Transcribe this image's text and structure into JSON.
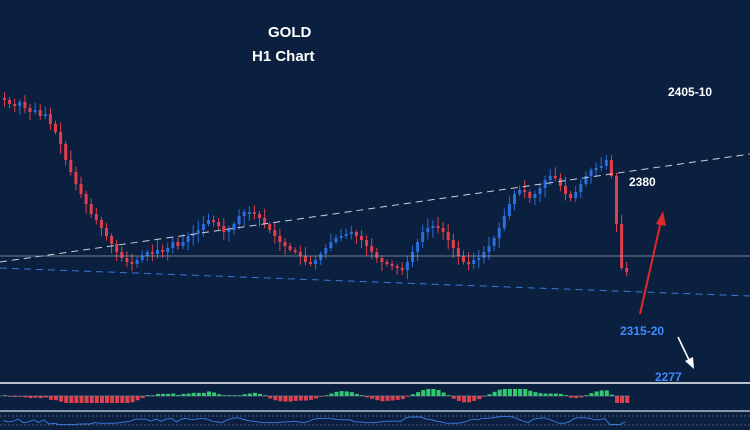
{
  "colors": {
    "background": "#0b1f3f",
    "bullish": "#2a6fdb",
    "bearish": "#e0404d",
    "trendline": "#c8d2e0",
    "support_line": "#3a78d6",
    "up_arrow": "#e02a2a",
    "down_arrow": "#ffffff",
    "label_blue": "#3d8bff",
    "label_white": "#ffffff",
    "histogram_positive": "#2ecc71",
    "histogram_negative": "#e0404d",
    "oscillator": "#3a78d6"
  },
  "chart_data": {
    "type": "candlestick",
    "title": "GOLD",
    "subtitle": "H1 Chart",
    "y_unit": "price",
    "annotations": [
      {
        "text": "2405-10",
        "kind": "target",
        "price": 2407
      },
      {
        "text": "2380",
        "kind": "resistance",
        "price": 2380
      },
      {
        "text": "2315-20",
        "kind": "support",
        "price": 2317
      },
      {
        "text": "2277",
        "kind": "target",
        "price": 2277
      }
    ],
    "trendlines": [
      {
        "name": "upper-dashed",
        "from_price": 2331,
        "to_price": 2385
      },
      {
        "name": "lower-dashed",
        "from_price": 2328,
        "to_price": 2314
      }
    ],
    "horizontal_line_price": 2334,
    "close_series": [
      2412,
      2410,
      2409,
      2411,
      2408,
      2406,
      2407,
      2404,
      2405,
      2400,
      2396,
      2390,
      2382,
      2376,
      2370,
      2365,
      2360,
      2355,
      2352,
      2348,
      2344,
      2340,
      2336,
      2333,
      2331,
      2330,
      2332,
      2334,
      2336,
      2335,
      2337,
      2336,
      2338,
      2341,
      2339,
      2341,
      2344,
      2345,
      2347,
      2350,
      2352,
      2351,
      2349,
      2346,
      2347,
      2350,
      2354,
      2356,
      2356,
      2355,
      2353,
      2350,
      2347,
      2344,
      2341,
      2339,
      2337,
      2336,
      2334,
      2331,
      2330,
      2332,
      2335,
      2338,
      2341,
      2343,
      2344,
      2345,
      2346,
      2344,
      2342,
      2339,
      2336,
      2333,
      2331,
      2330,
      2329,
      2328,
      2327,
      2331,
      2336,
      2341,
      2346,
      2348,
      2349,
      2348,
      2346,
      2342,
      2338,
      2334,
      2331,
      2330,
      2332,
      2333,
      2336,
      2339,
      2343,
      2348,
      2354,
      2360,
      2365,
      2367,
      2366,
      2363,
      2365,
      2368,
      2372,
      2374,
      2373,
      2369,
      2365,
      2363,
      2366,
      2370,
      2374,
      2377,
      2378,
      2379,
      2382,
      2374,
      2350,
      2328,
      2326
    ]
  }
}
